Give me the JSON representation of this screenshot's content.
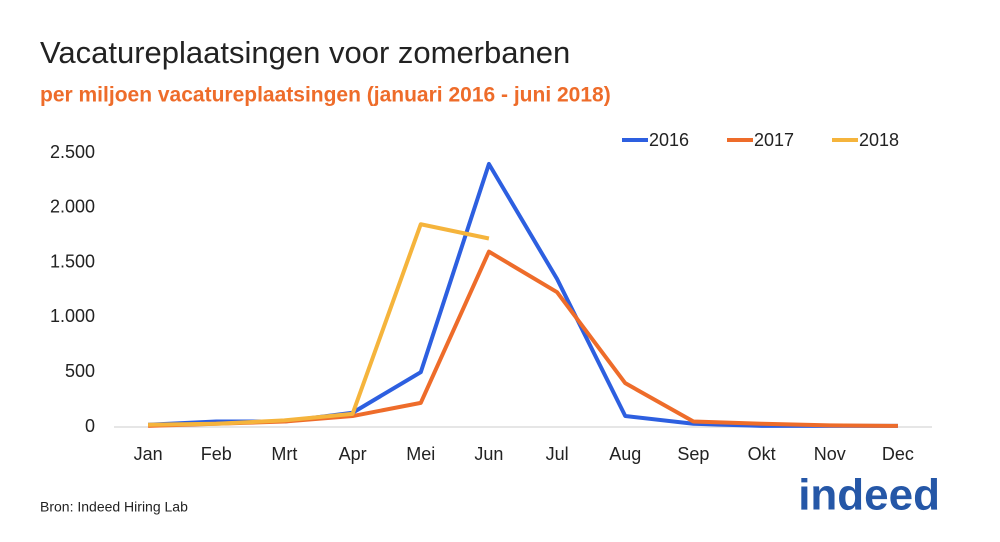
{
  "chart_data": {
    "type": "line",
    "title": "Vacatureplaatsingen voor zomerbanen",
    "subtitle": "per miljoen vacatureplaatsingen (januari 2016 - juni 2018)",
    "source": "Bron: Indeed Hiring Lab",
    "logo": "indeed",
    "categories": [
      "Jan",
      "Feb",
      "Mrt",
      "Apr",
      "Mei",
      "Jun",
      "Jul",
      "Aug",
      "Sep",
      "Okt",
      "Nov",
      "Dec"
    ],
    "series": [
      {
        "name": "2016",
        "color": "#2d5fe0",
        "values": [
          20,
          50,
          50,
          130,
          500,
          2400,
          1350,
          100,
          30,
          10,
          10,
          10
        ]
      },
      {
        "name": "2017",
        "color": "#ee6c2a",
        "values": [
          10,
          30,
          50,
          100,
          220,
          1600,
          1230,
          400,
          50,
          30,
          15,
          10
        ]
      },
      {
        "name": "2018",
        "color": "#f5b43c",
        "values": [
          20,
          30,
          60,
          120,
          1850,
          1720,
          null,
          null,
          null,
          null,
          null,
          null
        ]
      }
    ],
    "ylim": [
      0,
      2500
    ],
    "yticks": [
      0,
      500,
      {
        "value": 1000,
        "label": "1.000"
      },
      {
        "value": 1500,
        "label": "1.500"
      },
      {
        "value": 2000,
        "label": "2.000"
      },
      {
        "value": 2500,
        "label": "2.500"
      }
    ],
    "legend": "top-right"
  }
}
